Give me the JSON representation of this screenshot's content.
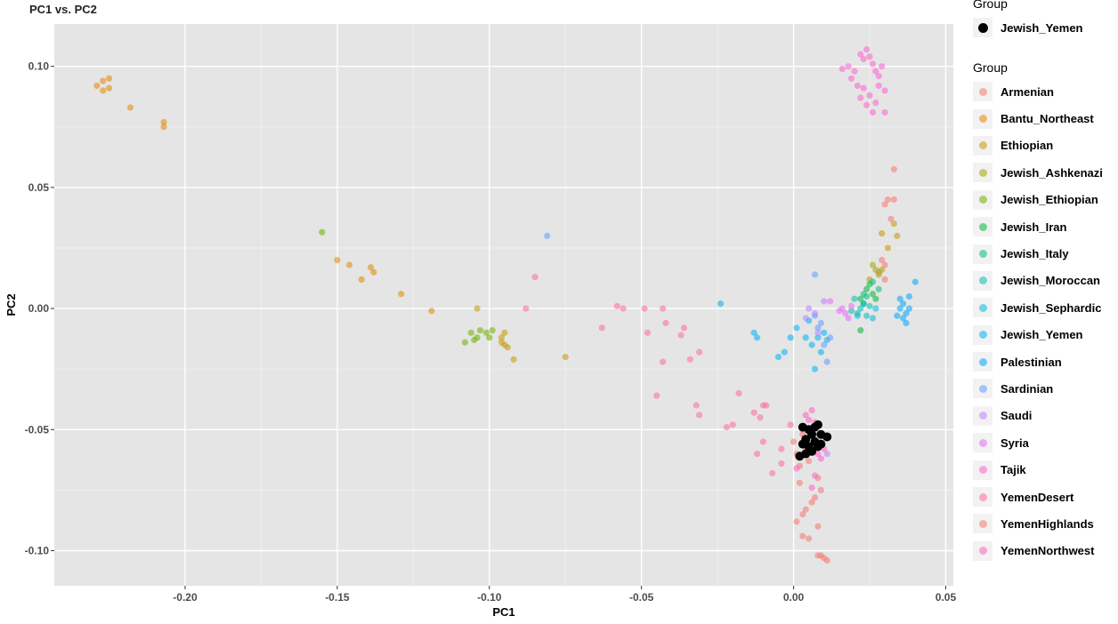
{
  "chart_data": {
    "type": "scatter",
    "title": "PC1 vs. PC2",
    "xlabel": "PC1",
    "ylabel": "PC2",
    "xlim": [
      -0.243,
      0.0525
    ],
    "ylim": [
      -0.1145,
      0.1175
    ],
    "x_ticks": [
      -0.2,
      -0.15,
      -0.1,
      -0.05,
      0.0,
      0.05
    ],
    "x_tick_labels": [
      "-0.20",
      "-0.15",
      "-0.10",
      "-0.05",
      "0.00",
      "0.05"
    ],
    "y_ticks": [
      0.1,
      0.05,
      0.0,
      -0.05,
      -0.1
    ],
    "y_tick_labels": [
      "0.10",
      "0.05",
      "0.00",
      "-0.05",
      "-0.10"
    ],
    "grid": true,
    "background": "#e5e5e5",
    "legend_position": "right",
    "legend_highlight": {
      "title": "Group",
      "label": "Jewish_Yemen",
      "color": "#000000"
    },
    "legend_title": "Group",
    "series": [
      {
        "name": "Armenian",
        "color": "#F8766D",
        "points": [
          [
            0.033,
            0.0575
          ],
          [
            0.031,
            0.045
          ],
          [
            0.033,
            0.045
          ],
          [
            0.03,
            0.043
          ],
          [
            0.032,
            0.037
          ],
          [
            0.03,
            0.018
          ],
          [
            0.029,
            0.02
          ],
          [
            0.028,
            0.015
          ],
          [
            0.03,
            0.012
          ]
        ]
      },
      {
        "name": "Bantu_Northeast",
        "color": "#E58700",
        "points": [
          [
            -0.229,
            0.092
          ],
          [
            -0.227,
            0.094
          ],
          [
            -0.225,
            0.095
          ],
          [
            -0.227,
            0.09
          ],
          [
            -0.225,
            0.091
          ],
          [
            -0.218,
            0.083
          ],
          [
            -0.207,
            0.077
          ],
          [
            -0.207,
            0.075
          ],
          [
            -0.15,
            0.02
          ],
          [
            -0.146,
            0.018
          ],
          [
            -0.142,
            0.012
          ],
          [
            -0.139,
            0.017
          ],
          [
            -0.138,
            0.015
          ],
          [
            -0.129,
            0.006
          ],
          [
            -0.119,
            -0.001
          ]
        ]
      },
      {
        "name": "Ethiopian",
        "color": "#C99800",
        "points": [
          [
            -0.104,
            0.0
          ],
          [
            -0.096,
            -0.012
          ],
          [
            -0.095,
            -0.015
          ],
          [
            -0.094,
            -0.016
          ],
          [
            -0.092,
            -0.021
          ],
          [
            -0.095,
            -0.01
          ],
          [
            -0.096,
            -0.014
          ],
          [
            -0.075,
            -0.02
          ],
          [
            0.033,
            0.035
          ],
          [
            0.034,
            0.03
          ],
          [
            0.031,
            0.025
          ],
          [
            0.029,
            0.031
          ]
        ]
      },
      {
        "name": "Jewish_Ashkenazi",
        "color": "#A3A500",
        "points": [
          [
            0.027,
            0.016
          ],
          [
            0.028,
            0.014
          ],
          [
            0.026,
            0.018
          ],
          [
            0.029,
            0.016
          ],
          [
            0.025,
            0.012
          ]
        ]
      },
      {
        "name": "Jewish_Ethiopian",
        "color": "#6BB100",
        "points": [
          [
            -0.155,
            0.0315
          ],
          [
            -0.106,
            -0.01
          ],
          [
            -0.104,
            -0.012
          ],
          [
            -0.103,
            -0.009
          ],
          [
            -0.101,
            -0.01
          ],
          [
            -0.099,
            -0.009
          ],
          [
            -0.1,
            -0.012
          ],
          [
            -0.105,
            -0.013
          ],
          [
            -0.108,
            -0.014
          ]
        ]
      },
      {
        "name": "Jewish_Iran",
        "color": "#00BA38",
        "points": [
          [
            0.024,
            0.008
          ],
          [
            0.026,
            0.006
          ],
          [
            0.022,
            0.004
          ],
          [
            0.025,
            0.01
          ],
          [
            0.023,
            0.002
          ],
          [
            0.027,
            0.004
          ],
          [
            0.022,
            -0.009
          ]
        ]
      },
      {
        "name": "Jewish_Italy",
        "color": "#00BF7D",
        "points": [
          [
            0.026,
            0.011
          ],
          [
            0.024,
            0.005
          ],
          [
            0.028,
            0.008
          ],
          [
            0.023,
            0.006
          ]
        ]
      },
      {
        "name": "Jewish_Moroccan",
        "color": "#00C0AF",
        "points": [
          [
            0.02,
            0.004
          ],
          [
            0.022,
            0.0
          ],
          [
            0.024,
            -0.003
          ],
          [
            0.021,
            -0.002
          ],
          [
            0.025,
            0.001
          ],
          [
            0.019,
            -0.001
          ]
        ]
      },
      {
        "name": "Jewish_Sephardic",
        "color": "#00BCD8",
        "points": [
          [
            0.021,
            -0.003
          ],
          [
            0.023,
            0.002
          ],
          [
            0.026,
            -0.004
          ],
          [
            0.027,
            0.0
          ]
        ]
      },
      {
        "name": "Jewish_Yemen",
        "color": "#00B0F6",
        "points": [
          [
            -0.024,
            0.002
          ],
          [
            -0.013,
            -0.01
          ],
          [
            -0.012,
            -0.012
          ],
          [
            -0.005,
            -0.02
          ],
          [
            -0.003,
            -0.018
          ],
          [
            -0.001,
            -0.012
          ],
          [
            0.001,
            -0.008
          ],
          [
            0.004,
            -0.012
          ],
          [
            0.006,
            -0.015
          ],
          [
            0.008,
            -0.012
          ],
          [
            0.01,
            -0.01
          ],
          [
            0.005,
            -0.005
          ],
          [
            0.007,
            -0.025
          ],
          [
            0.009,
            -0.018
          ],
          [
            0.011,
            -0.013
          ]
        ]
      },
      {
        "name": "Palestinian",
        "color": "#00A5FF",
        "points": [
          [
            0.035,
            0.0
          ],
          [
            0.037,
            -0.002
          ],
          [
            0.036,
            0.002
          ],
          [
            0.038,
            0.0
          ],
          [
            0.034,
            -0.003
          ],
          [
            0.04,
            0.011
          ],
          [
            0.037,
            -0.006
          ],
          [
            0.035,
            0.004
          ],
          [
            0.038,
            0.005
          ],
          [
            0.036,
            -0.004
          ]
        ]
      },
      {
        "name": "Sardinian",
        "color": "#619CFF",
        "points": [
          [
            -0.081,
            0.03
          ],
          [
            0.007,
            -0.003
          ],
          [
            0.008,
            -0.008
          ],
          [
            0.01,
            -0.015
          ],
          [
            0.012,
            -0.012
          ],
          [
            0.009,
            -0.006
          ],
          [
            0.011,
            -0.022
          ],
          [
            0.007,
            0.014
          ]
        ]
      },
      {
        "name": "Saudi",
        "color": "#B983FF",
        "points": [
          [
            0.005,
            0.0
          ],
          [
            0.008,
            -0.01
          ],
          [
            0.007,
            -0.002
          ],
          [
            0.01,
            0.003
          ],
          [
            0.004,
            -0.004
          ],
          [
            0.011,
            -0.06
          ]
        ]
      },
      {
        "name": "Syria",
        "color": "#E76BF3",
        "points": [
          [
            0.015,
            -0.001
          ],
          [
            0.018,
            -0.004
          ],
          [
            0.016,
            0.0
          ],
          [
            0.019,
            0.001
          ],
          [
            0.017,
            -0.002
          ],
          [
            0.012,
            0.003
          ]
        ]
      },
      {
        "name": "Tajik",
        "color": "#FD61D1",
        "points": [
          [
            0.016,
            0.099
          ],
          [
            0.018,
            0.1
          ],
          [
            0.02,
            0.098
          ],
          [
            0.022,
            0.105
          ],
          [
            0.023,
            0.103
          ],
          [
            0.024,
            0.107
          ],
          [
            0.025,
            0.104
          ],
          [
            0.026,
            0.101
          ],
          [
            0.027,
            0.098
          ],
          [
            0.028,
            0.096
          ],
          [
            0.029,
            0.1
          ],
          [
            0.03,
            0.09
          ],
          [
            0.027,
            0.085
          ],
          [
            0.025,
            0.088
          ],
          [
            0.023,
            0.091
          ],
          [
            0.021,
            0.092
          ],
          [
            0.019,
            0.095
          ],
          [
            0.024,
            0.084
          ],
          [
            0.026,
            0.081
          ],
          [
            0.03,
            0.081
          ],
          [
            0.022,
            0.087
          ],
          [
            0.028,
            0.092
          ]
        ]
      },
      {
        "name": "YemenDesert",
        "color": "#FF67A4",
        "points": [
          [
            -0.085,
            0.013
          ],
          [
            -0.088,
            0.0
          ],
          [
            -0.058,
            0.001
          ],
          [
            -0.056,
            0.0
          ],
          [
            -0.049,
            0.0
          ],
          [
            -0.043,
            0.0
          ],
          [
            -0.063,
            -0.008
          ],
          [
            -0.048,
            -0.01
          ],
          [
            -0.042,
            -0.006
          ],
          [
            -0.036,
            -0.008
          ],
          [
            -0.037,
            -0.011
          ],
          [
            -0.031,
            -0.018
          ],
          [
            -0.034,
            -0.021
          ],
          [
            -0.043,
            -0.022
          ],
          [
            -0.045,
            -0.036
          ],
          [
            -0.018,
            -0.035
          ],
          [
            -0.032,
            -0.04
          ],
          [
            -0.031,
            -0.044
          ],
          [
            -0.01,
            -0.04
          ],
          [
            -0.009,
            -0.04
          ],
          [
            -0.011,
            -0.045
          ],
          [
            -0.013,
            -0.043
          ],
          [
            -0.02,
            -0.048
          ],
          [
            -0.022,
            -0.049
          ],
          [
            -0.001,
            -0.048
          ],
          [
            -0.004,
            -0.058
          ],
          [
            -0.01,
            -0.055
          ],
          [
            -0.012,
            -0.06
          ],
          [
            -0.007,
            -0.068
          ],
          [
            -0.004,
            -0.064
          ]
        ]
      },
      {
        "name": "YemenHighlands",
        "color": "#F8766D",
        "points": [
          [
            0.0,
            -0.055
          ],
          [
            0.001,
            -0.06
          ],
          [
            0.002,
            -0.065
          ],
          [
            0.003,
            -0.052
          ],
          [
            0.004,
            -0.058
          ],
          [
            0.005,
            -0.063
          ],
          [
            0.006,
            -0.05
          ],
          [
            0.007,
            -0.057
          ],
          [
            0.008,
            -0.07
          ],
          [
            0.009,
            -0.075
          ],
          [
            0.006,
            -0.08
          ],
          [
            0.004,
            -0.083
          ],
          [
            0.003,
            -0.085
          ],
          [
            0.001,
            -0.088
          ],
          [
            0.005,
            -0.095
          ],
          [
            0.003,
            -0.094
          ],
          [
            0.008,
            -0.09
          ],
          [
            0.008,
            -0.102
          ],
          [
            0.009,
            -0.102
          ],
          [
            0.011,
            -0.104
          ],
          [
            0.01,
            -0.103
          ],
          [
            0.007,
            -0.078
          ],
          [
            0.002,
            -0.072
          ]
        ]
      },
      {
        "name": "YemenNorthwest",
        "color": "#FF61C3",
        "points": [
          [
            0.004,
            -0.044
          ],
          [
            0.005,
            -0.046
          ],
          [
            0.006,
            -0.042
          ],
          [
            0.007,
            -0.047
          ],
          [
            0.003,
            -0.05
          ],
          [
            0.008,
            -0.06
          ],
          [
            0.009,
            -0.062
          ],
          [
            0.01,
            -0.058
          ],
          [
            0.002,
            -0.061
          ],
          [
            0.001,
            -0.066
          ],
          [
            0.007,
            -0.069
          ],
          [
            0.006,
            -0.074
          ]
        ]
      }
    ],
    "highlight_series": {
      "name": "Jewish_Yemen",
      "color": "#000000",
      "points": [
        [
          0.003,
          -0.049
        ],
        [
          0.005,
          -0.05
        ],
        [
          0.007,
          -0.049
        ],
        [
          0.008,
          -0.048
        ],
        [
          0.006,
          -0.052
        ],
        [
          0.004,
          -0.054
        ],
        [
          0.007,
          -0.055
        ],
        [
          0.009,
          -0.052
        ],
        [
          0.005,
          -0.057
        ],
        [
          0.003,
          -0.056
        ],
        [
          0.008,
          -0.057
        ],
        [
          0.009,
          -0.056
        ],
        [
          0.006,
          -0.059
        ],
        [
          0.011,
          -0.053
        ],
        [
          0.004,
          -0.06
        ],
        [
          0.002,
          -0.061
        ]
      ]
    }
  }
}
